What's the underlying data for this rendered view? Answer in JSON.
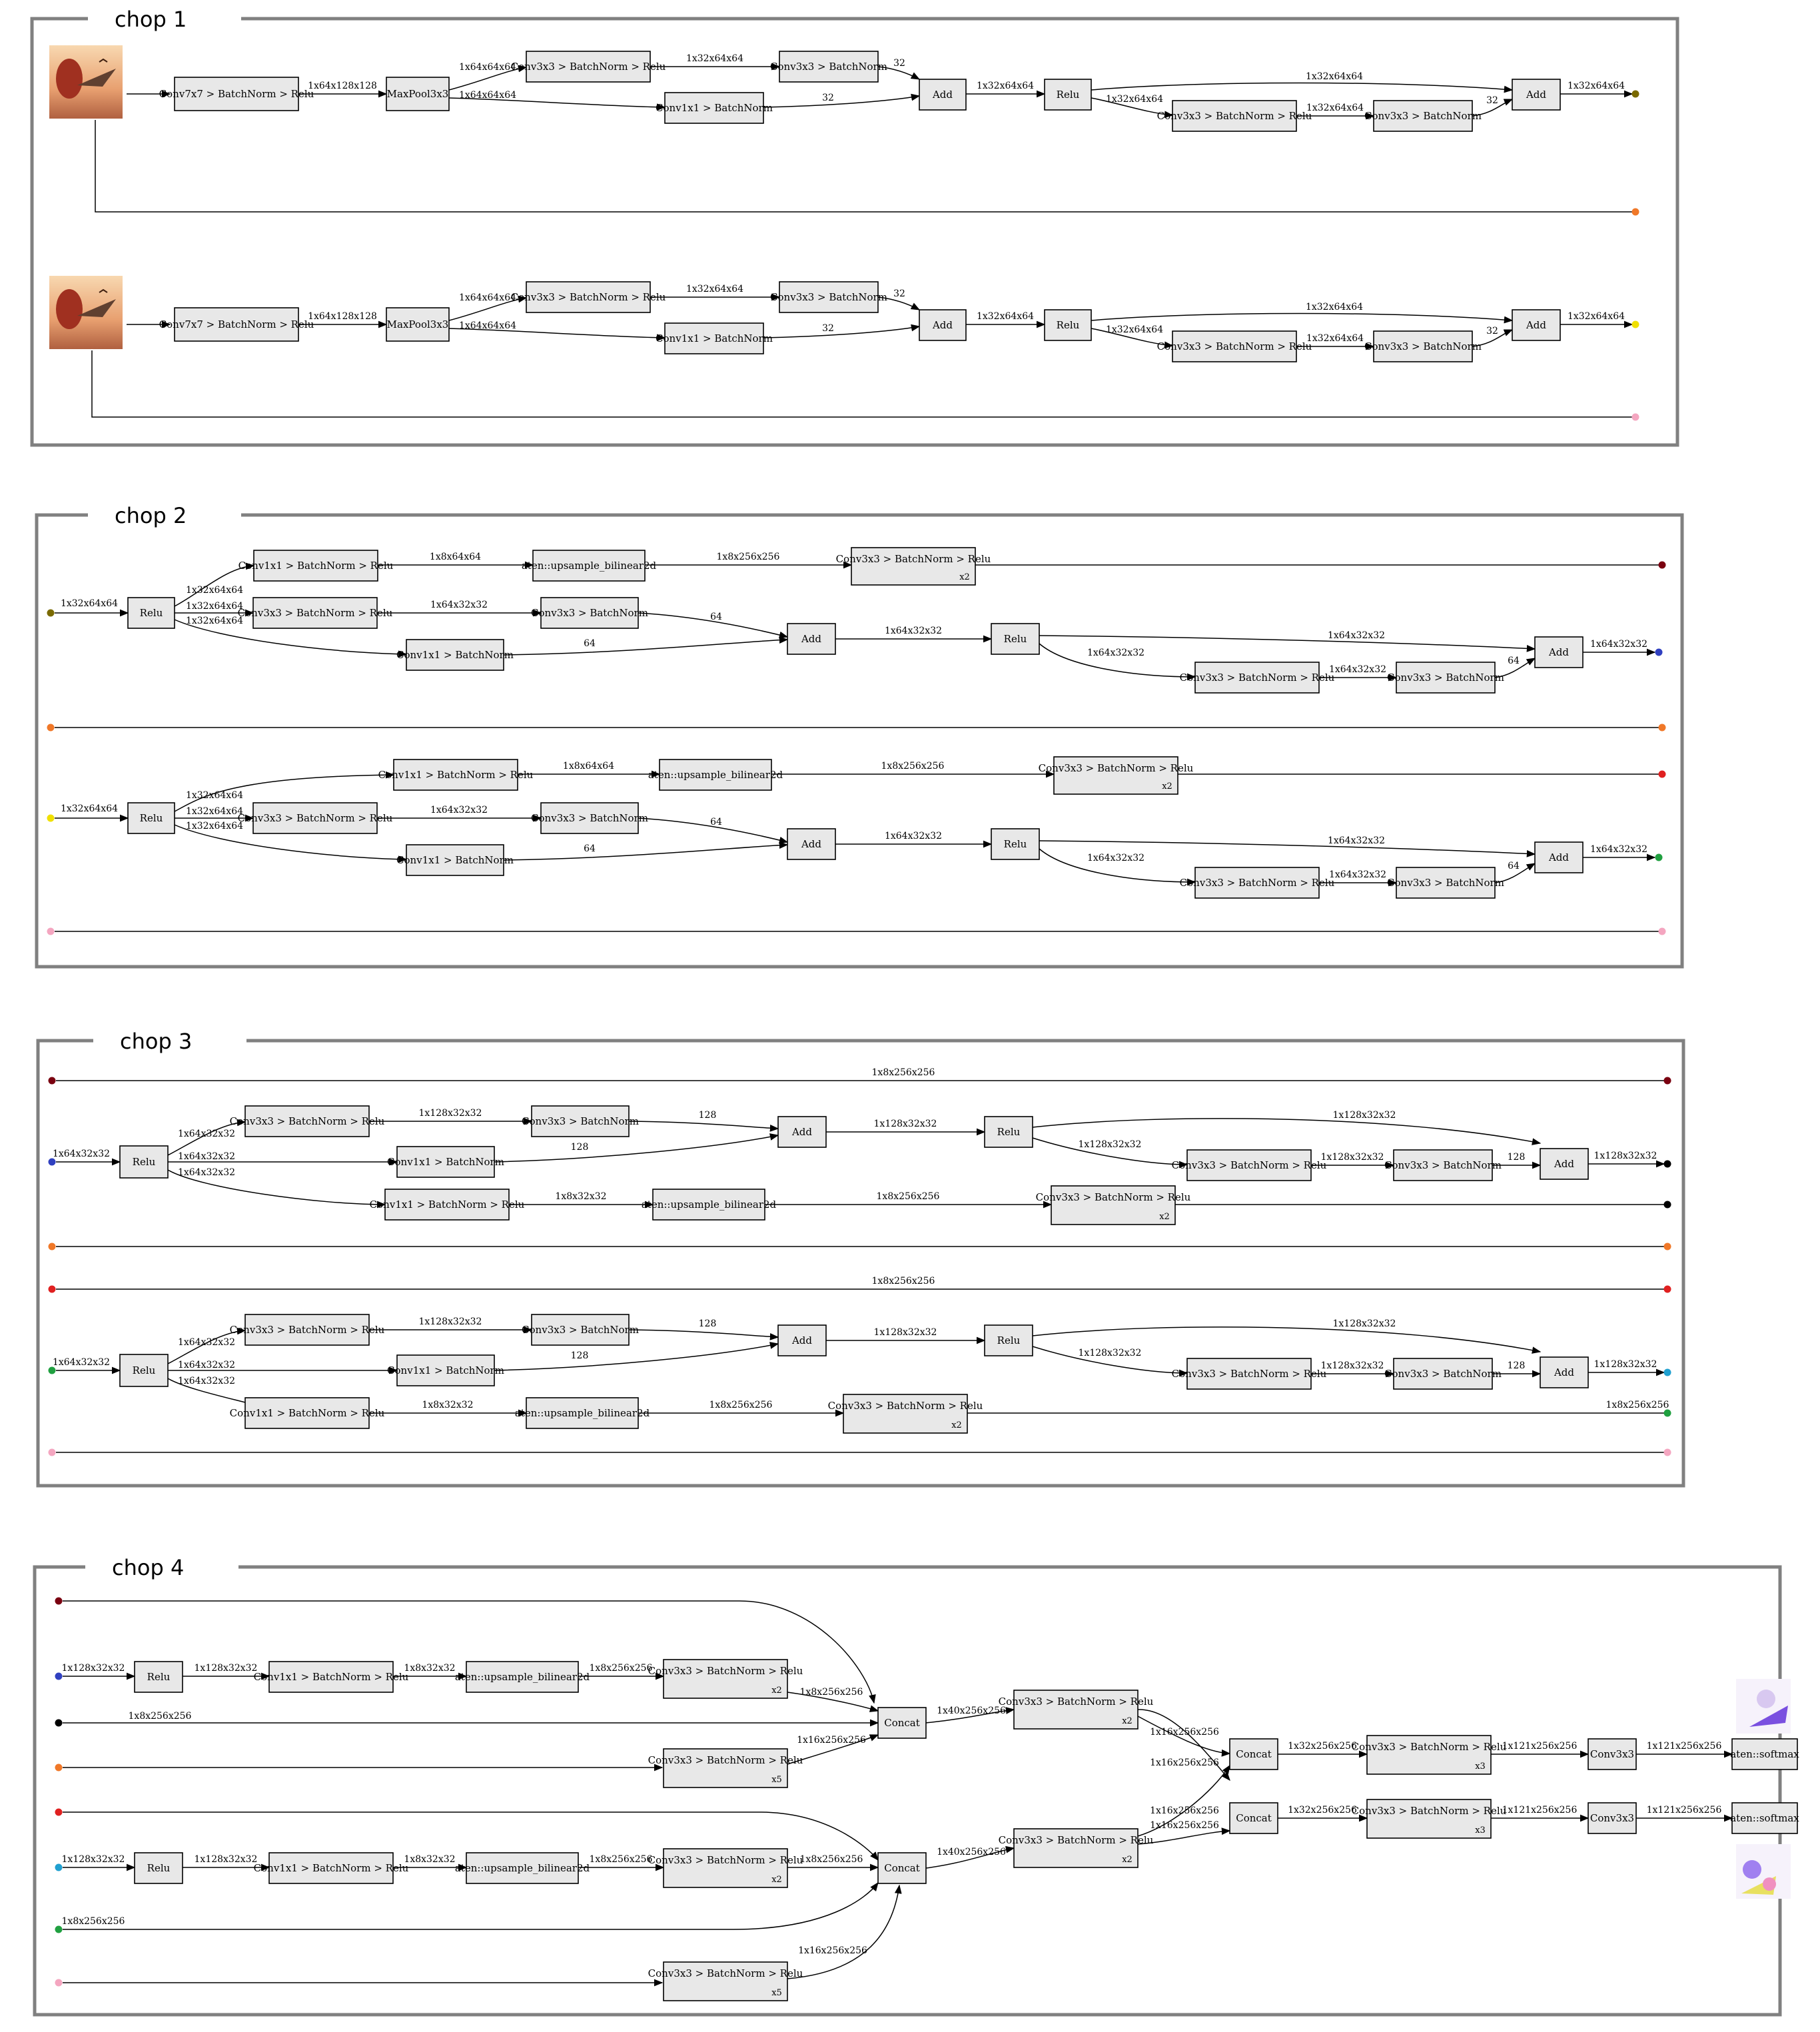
{
  "panels": [
    {
      "title": "chop 1"
    },
    {
      "title": "chop 2"
    },
    {
      "title": "chop 3"
    },
    {
      "title": "chop 4"
    }
  ],
  "colors": {
    "port_olive": "#7a6a00",
    "port_orange": "#f07828",
    "port_yellow": "#f0e000",
    "port_pink": "#f4a6c0",
    "port_maroon": "#7a0010",
    "port_blue": "#3040c0",
    "port_black": "#000000",
    "port_red": "#e02020",
    "port_cyan": "#20a0d0",
    "port_green": "#20a040",
    "node_fill": "#e8e8e8",
    "panel_border": "#808080"
  },
  "labels": {
    "conv7_bn_relu": "Conv7x7 > BatchNorm > Relu",
    "maxpool": "MaxPool3x3",
    "conv3_bn_relu": "Conv3x3 > BatchNorm > Relu",
    "conv3_bn": "Conv3x3 > BatchNorm",
    "conv1_bn": "Conv1x1 > BatchNorm",
    "conv1_bn_relu": "Conv1x1 > BatchNorm > Relu",
    "add": "Add",
    "relu": "Relu",
    "upsample": "aten::upsample_bilinear2d",
    "concat": "Concat",
    "conv3": "Conv3x3",
    "softmax": "aten::softmax",
    "x2": "x2",
    "x3": "x3",
    "x5": "x5"
  },
  "edge_labels": {
    "t64_128_128": "1x64x128x128",
    "t64_64_64": "1x64x64x64",
    "t32_64_64": "1x32x64x64",
    "n32": "32",
    "t8_64_64": "1x8x64x64",
    "t8_256_256": "1x8x256x256",
    "t64_32_32": "1x64x32x32",
    "n64": "64",
    "t128_32_32": "1x128x32x32",
    "n128": "128",
    "t8_32_32": "1x8x32x32",
    "t40_256_256": "1x40x256x256",
    "t16_256_256": "1x16x256x256",
    "t32_256_256": "1x32x256x256",
    "t121_256_256": "1x121x256x256"
  }
}
